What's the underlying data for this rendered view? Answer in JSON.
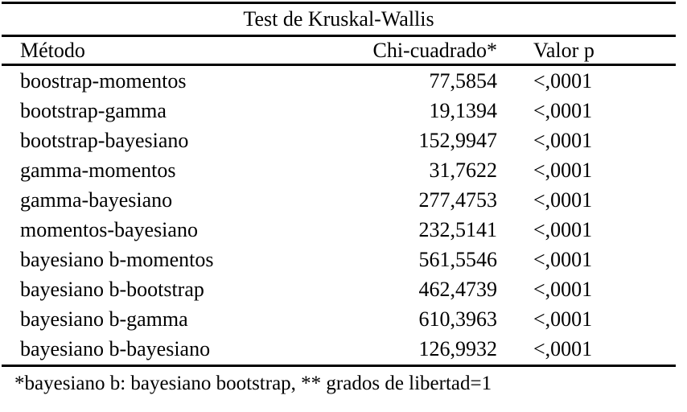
{
  "page": {
    "background_color": "#ffffff",
    "text_color": "#000000",
    "rule_color": "#000000"
  },
  "table": {
    "title": "Test de Kruskal-Wallis",
    "headers": [
      "Método",
      "Chi-cuadrado*",
      "Valor p"
    ],
    "rows": [
      {
        "method": "boostrap-momentos",
        "chi_squared": "77,5854",
        "p_value": "<,0001"
      },
      {
        "method": "bootstrap-gamma",
        "chi_squared": "19,1394",
        "p_value": "<,0001"
      },
      {
        "method": "bootstrap-bayesiano",
        "chi_squared": "152,9947",
        "p_value": "<,0001"
      },
      {
        "method": "gamma-momentos",
        "chi_squared": "31,7622",
        "p_value": "<,0001"
      },
      {
        "method": "gamma-bayesiano",
        "chi_squared": "277,4753",
        "p_value": "<,0001"
      },
      {
        "method": "momentos-bayesiano",
        "chi_squared": "232,5141",
        "p_value": "<,0001"
      },
      {
        "method": "bayesiano b-momentos",
        "chi_squared": "561,5546",
        "p_value": "<,0001"
      },
      {
        "method": "bayesiano b-bootstrap",
        "chi_squared": "462,4739",
        "p_value": "<,0001"
      },
      {
        "method": "bayesiano b-gamma",
        "chi_squared": "610,3963",
        "p_value": "<,0001"
      },
      {
        "method": "bayesiano b-bayesiano",
        "chi_squared": "126,9932",
        "p_value": "<,0001"
      }
    ],
    "footnote": "*bayesiano b: bayesiano bootstrap, ** grados de libertad=1"
  }
}
